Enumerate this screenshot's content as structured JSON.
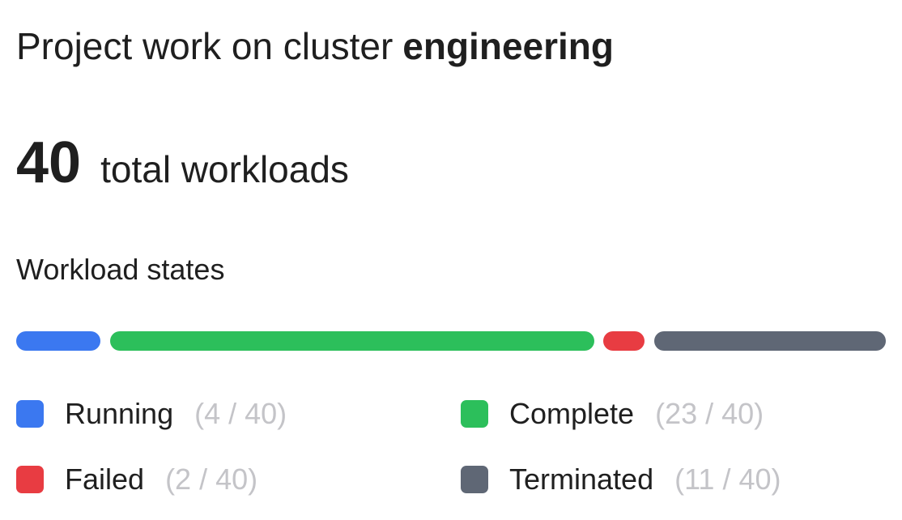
{
  "header": {
    "prefix": "Project work on cluster",
    "cluster": "engineering"
  },
  "summary": {
    "total": "40",
    "label": "total workloads"
  },
  "states_title": "Workload states",
  "states": [
    {
      "name": "Running",
      "count": "(4 / 40)",
      "value": 4,
      "color": "#3b78f0"
    },
    {
      "name": "Complete",
      "count": "(23 / 40)",
      "value": 23,
      "color": "#2cbf5b"
    },
    {
      "name": "Failed",
      "count": "(2 / 40)",
      "value": 2,
      "color": "#e83c42"
    },
    {
      "name": "Terminated",
      "count": "(11 / 40)",
      "value": 11,
      "color": "#5f6775"
    }
  ]
}
